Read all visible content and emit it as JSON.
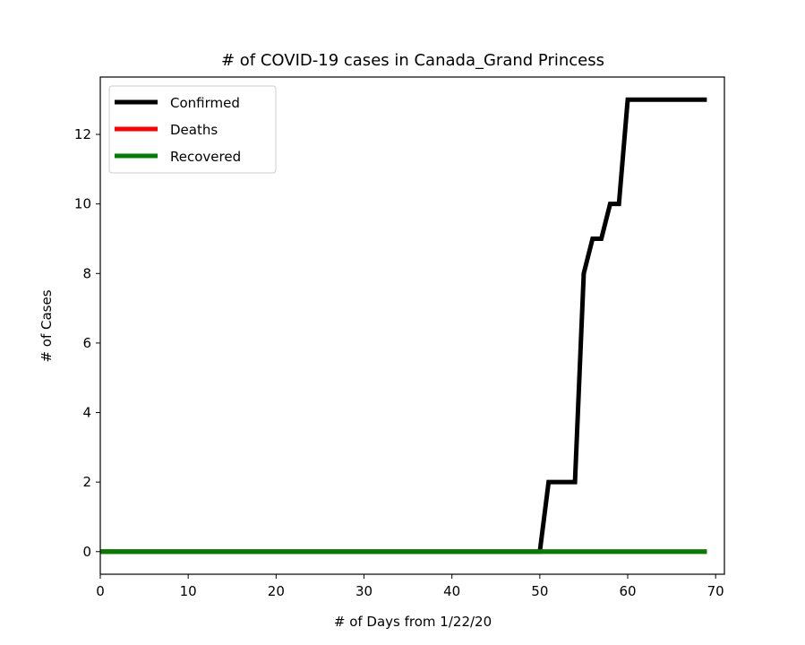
{
  "chart_data": {
    "type": "line",
    "title": "# of COVID-19 cases in Canada_Grand Princess",
    "xlabel": "# of Days from 1/22/20",
    "ylabel": "# of Cases",
    "xlim": [
      0,
      71
    ],
    "ylim": [
      -0.65,
      13.65
    ],
    "xticks": [
      0,
      10,
      20,
      30,
      40,
      50,
      60,
      70
    ],
    "yticks": [
      0,
      2,
      4,
      6,
      8,
      10,
      12
    ],
    "legend_position": "top-left",
    "grid": false,
    "series": [
      {
        "name": "Confirmed",
        "color": "#000000",
        "points": [
          [
            0,
            0
          ],
          [
            50,
            0
          ],
          [
            51,
            2
          ],
          [
            54,
            2
          ],
          [
            55,
            8
          ],
          [
            56,
            9
          ],
          [
            57,
            9
          ],
          [
            58,
            10
          ],
          [
            59,
            10
          ],
          [
            60,
            13
          ],
          [
            69,
            13
          ]
        ]
      },
      {
        "name": "Deaths",
        "color": "#ff0000",
        "points": [
          [
            0,
            0
          ],
          [
            69,
            0
          ]
        ]
      },
      {
        "name": "Recovered",
        "color": "#008000",
        "points": [
          [
            0,
            0
          ],
          [
            69,
            0
          ]
        ]
      }
    ]
  }
}
